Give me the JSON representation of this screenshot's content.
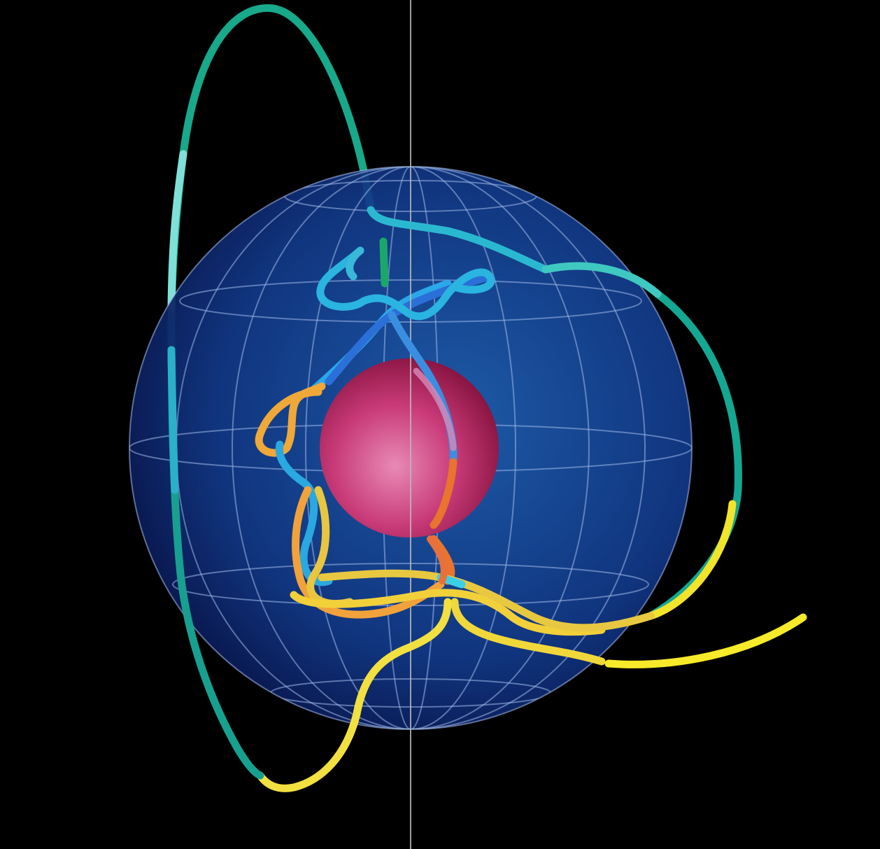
{
  "scene": {
    "background_color": "#000000",
    "outer_sphere": {
      "fill_center": "#1f5fb0",
      "fill_edge": "#0a1a55",
      "grid_color": "#9fb8e8",
      "latitude_lines": 7,
      "longitude_lines": 8
    },
    "inner_sphere": {
      "fill_center": "#e06a9e",
      "fill_edge": "#8a1542"
    },
    "vertical_axis_color": "#b9b9b9",
    "trajectory_colors": {
      "outer": "#18a88a",
      "outer_light": "#5fd8c8",
      "inner_blue": "#2aa8e8",
      "deep_blue": "#2b6fd8",
      "near": "#f08a35",
      "mid": "#f2c83a",
      "far": "#f6ea2a"
    }
  }
}
